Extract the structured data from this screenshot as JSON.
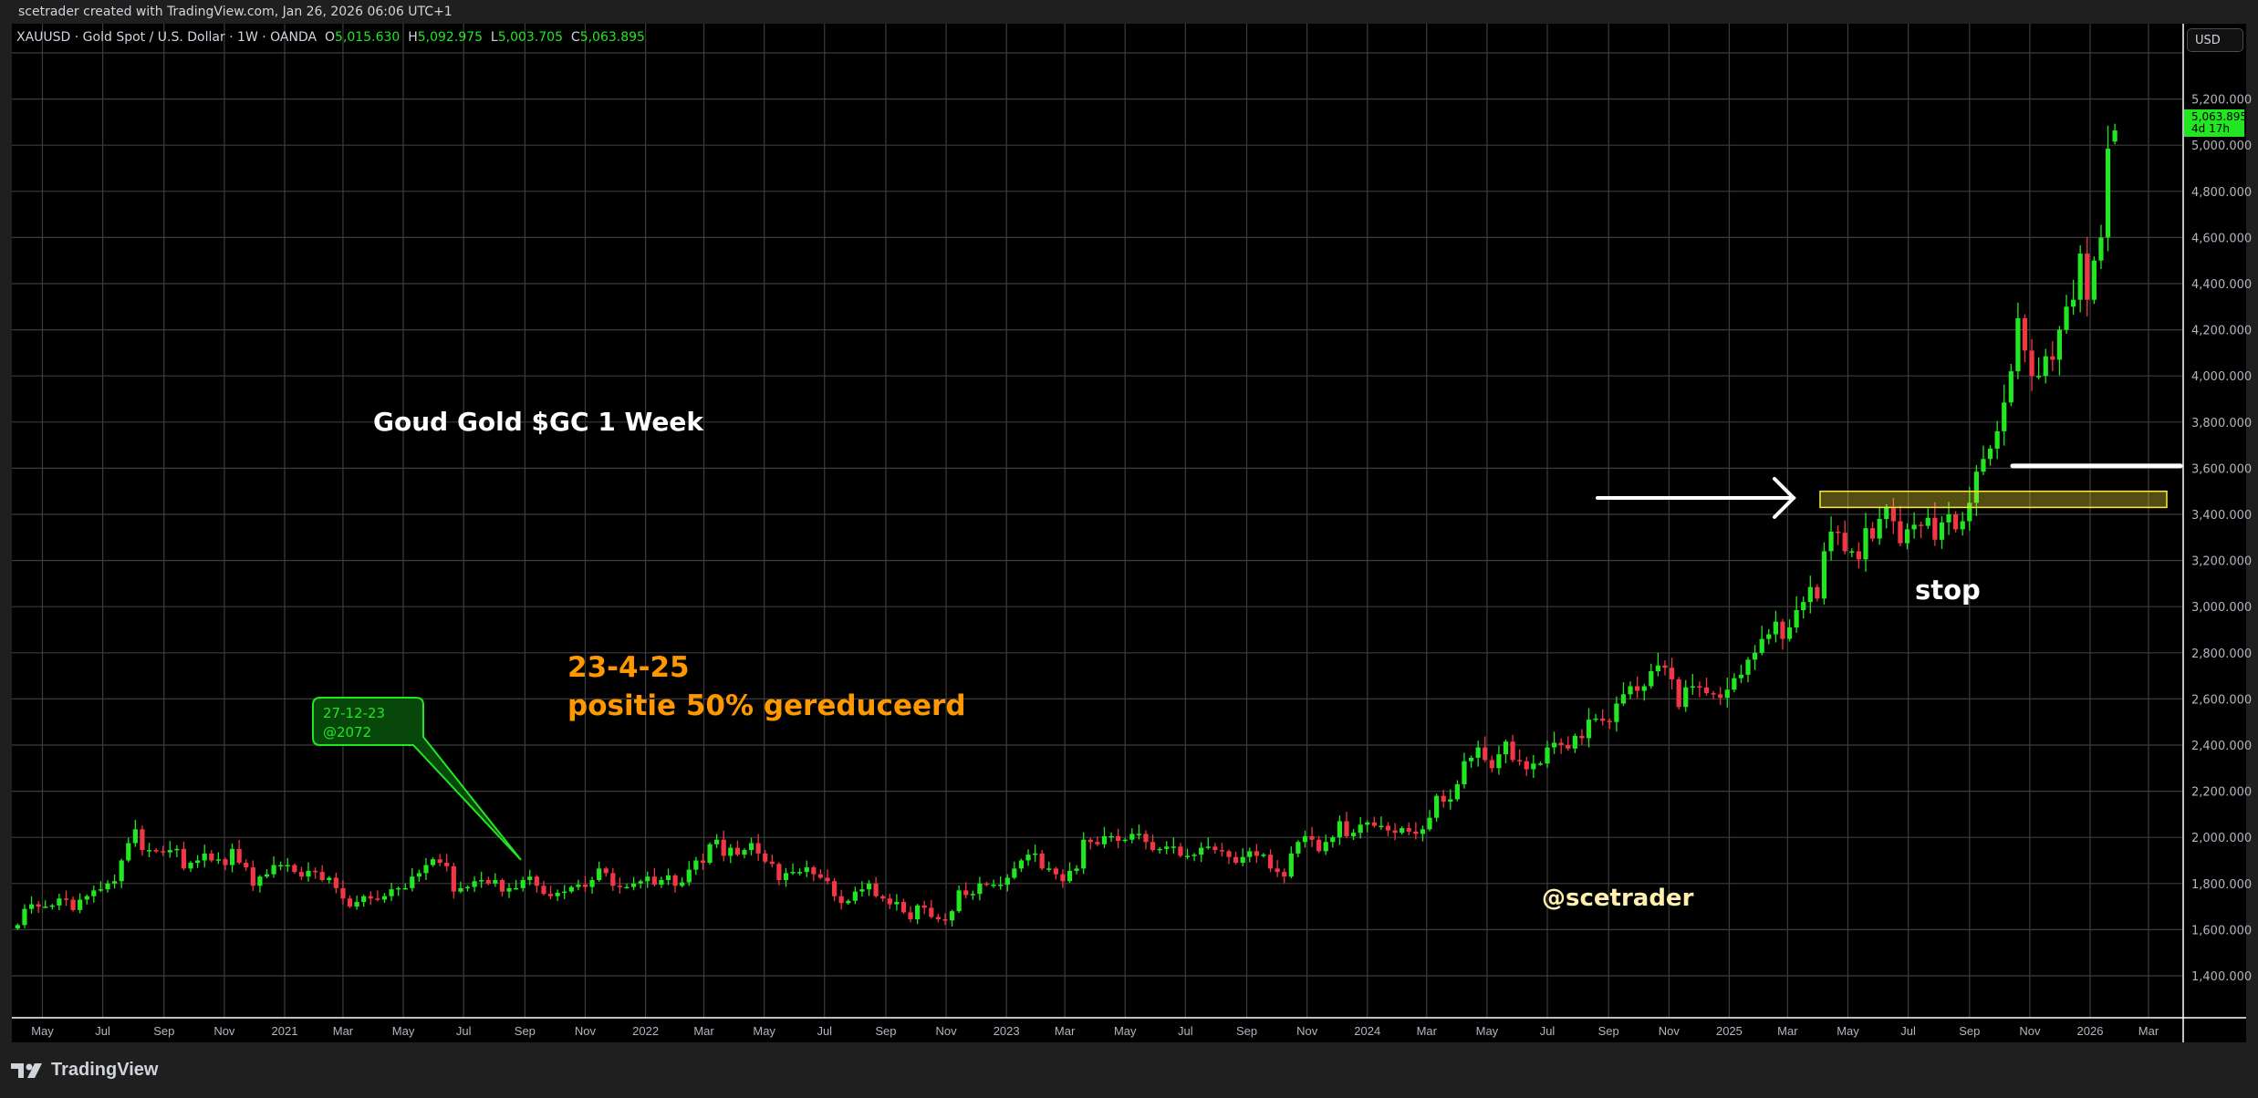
{
  "header": {
    "credit": "scetrader created with TradingView.com, Jan 26, 2026 06:06 UTC+1"
  },
  "legend": {
    "symbol": "XAUUSD · Gold Spot / U.S. Dollar · 1W · OANDA",
    "open_label": "O",
    "open": "5,015.630",
    "high_label": "H",
    "high": "5,092.975",
    "low_label": "L",
    "low": "5,003.705",
    "close_label": "C",
    "close": "5,063.895"
  },
  "price_axis": {
    "currency_button": "USD",
    "last_price": "5,063.895",
    "countdown": "4d 17h"
  },
  "logo": {
    "text": "TradingView",
    "icon": "tradingview-logo-icon"
  },
  "colors": {
    "up": "#22e622",
    "down": "#f23645",
    "background": "#000000",
    "grid": "#3c3c3c",
    "annotation_orange": "#ff9800",
    "zone_yellow": "#ffeb3b",
    "handle": "#fff0b0"
  },
  "annotations": {
    "title": "Goud Gold $GC 1 Week",
    "reduce_date": "23-4-25",
    "reduce_text": "positie 50% gereduceerd",
    "callout_line1": "27-12-23",
    "callout_line2": "@2072",
    "stop": "stop",
    "handle": "@scetrader",
    "zone_low": 3430,
    "zone_high": 3500,
    "stop_line_price": 3610
  },
  "chart_data": {
    "type": "candlestick",
    "interval": "1W",
    "last_bar_date": "2026-01-26",
    "ylim": [
      1220,
      5400
    ],
    "grid": true,
    "y_ticks": [
      1400,
      1600,
      1800,
      2000,
      2200,
      2400,
      2600,
      2800,
      3000,
      3200,
      3400,
      3600,
      3800,
      4000,
      4200,
      4400,
      4600,
      4800,
      5000,
      5200
    ],
    "x_ticks": [
      {
        "label": "May",
        "date": "2020-05-01"
      },
      {
        "label": "Jul",
        "date": "2020-07-01"
      },
      {
        "label": "Sep",
        "date": "2020-09-01"
      },
      {
        "label": "Nov",
        "date": "2020-11-01"
      },
      {
        "label": "2021",
        "date": "2021-01-01"
      },
      {
        "label": "Mar",
        "date": "2021-03-01"
      },
      {
        "label": "May",
        "date": "2021-05-01"
      },
      {
        "label": "Jul",
        "date": "2021-07-01"
      },
      {
        "label": "Sep",
        "date": "2021-09-01"
      },
      {
        "label": "Nov",
        "date": "2021-11-01"
      },
      {
        "label": "2022",
        "date": "2022-01-01"
      },
      {
        "label": "Mar",
        "date": "2022-03-01"
      },
      {
        "label": "May",
        "date": "2022-05-01"
      },
      {
        "label": "Jul",
        "date": "2022-07-01"
      },
      {
        "label": "Sep",
        "date": "2022-09-01"
      },
      {
        "label": "Nov",
        "date": "2022-11-01"
      },
      {
        "label": "2023",
        "date": "2023-01-01"
      },
      {
        "label": "Mar",
        "date": "2023-03-01"
      },
      {
        "label": "May",
        "date": "2023-05-01"
      },
      {
        "label": "Jul",
        "date": "2023-07-01"
      },
      {
        "label": "Sep",
        "date": "2023-09-01"
      },
      {
        "label": "Nov",
        "date": "2023-11-01"
      },
      {
        "label": "2024",
        "date": "2024-01-01"
      },
      {
        "label": "Mar",
        "date": "2024-03-01"
      },
      {
        "label": "May",
        "date": "2024-05-01"
      },
      {
        "label": "Jul",
        "date": "2024-07-01"
      },
      {
        "label": "Sep",
        "date": "2024-09-01"
      },
      {
        "label": "Nov",
        "date": "2024-11-01"
      },
      {
        "label": "2025",
        "date": "2025-01-01"
      },
      {
        "label": "Mar",
        "date": "2025-03-01"
      },
      {
        "label": "May",
        "date": "2025-05-01"
      },
      {
        "label": "Jul",
        "date": "2025-07-01"
      },
      {
        "label": "Sep",
        "date": "2025-09-01"
      },
      {
        "label": "Nov",
        "date": "2025-11-01"
      },
      {
        "label": "2026",
        "date": "2026-01-01"
      },
      {
        "label": "Mar",
        "date": "2026-03-01"
      }
    ],
    "first_open": 1605,
    "closes": [
      1620,
      1690,
      1710,
      1700,
      1700,
      1705,
      1735,
      1730,
      1685,
      1730,
      1745,
      1770,
      1775,
      1800,
      1810,
      1900,
      1975,
      2035,
      1945,
      1945,
      1940,
      1935,
      1945,
      1950,
      1865,
      1890,
      1900,
      1930,
      1900,
      1905,
      1880,
      1950,
      1890,
      1870,
      1790,
      1830,
      1840,
      1880,
      1880,
      1880,
      1850,
      1830,
      1855,
      1850,
      1815,
      1825,
      1780,
      1735,
      1700,
      1720,
      1745,
      1735,
      1730,
      1745,
      1775,
      1780,
      1780,
      1830,
      1845,
      1880,
      1905,
      1890,
      1875,
      1765,
      1780,
      1785,
      1810,
      1815,
      1800,
      1815,
      1765,
      1780,
      1780,
      1815,
      1830,
      1790,
      1755,
      1745,
      1760,
      1765,
      1785,
      1795,
      1785,
      1815,
      1865,
      1845,
      1790,
      1785,
      1785,
      1800,
      1810,
      1830,
      1795,
      1815,
      1835,
      1790,
      1805,
      1860,
      1900,
      1890,
      1970,
      1990,
      1920,
      1955,
      1925,
      1945,
      1975,
      1930,
      1895,
      1885,
      1815,
      1845,
      1850,
      1850,
      1870,
      1840,
      1825,
      1810,
      1745,
      1715,
      1725,
      1765,
      1775,
      1800,
      1745,
      1735,
      1710,
      1720,
      1675,
      1645,
      1705,
      1695,
      1655,
      1645,
      1640,
      1680,
      1770,
      1750,
      1755,
      1800,
      1795,
      1795,
      1795,
      1825,
      1865,
      1900,
      1925,
      1930,
      1865,
      1865,
      1840,
      1810,
      1855,
      1865,
      1990,
      1980,
      1970,
      2005,
      2005,
      1985,
      1990,
      2015,
      2015,
      1980,
      1945,
      1950,
      1960,
      1960,
      1920,
      1920,
      1925,
      1955,
      1960,
      1945,
      1940,
      1915,
      1890,
      1915,
      1940,
      1920,
      1925,
      1865,
      1850,
      1830,
      1930,
      1980,
      2005,
      1990,
      1940,
      1980,
      2000,
      2070,
      2005,
      2020,
      2055,
      2065,
      2050,
      2050,
      2030,
      2020,
      2040,
      2025,
      2015,
      2035,
      2085,
      2180,
      2155,
      2165,
      2230,
      2330,
      2345,
      2390,
      2335,
      2300,
      2360,
      2415,
      2335,
      2330,
      2295,
      2320,
      2320,
      2390,
      2410,
      2400,
      2385,
      2440,
      2430,
      2510,
      2515,
      2505,
      2500,
      2580,
      2620,
      2655,
      2635,
      2655,
      2720,
      2745,
      2735,
      2685,
      2565,
      2650,
      2655,
      2650,
      2625,
      2620,
      2605,
      2640,
      2690,
      2705,
      2770,
      2800,
      2860,
      2880,
      2935,
      2860,
      2910,
      2985,
      3020,
      3085,
      3035,
      3240,
      3325,
      3320,
      3240,
      3240,
      3205,
      3340,
      3295,
      3380,
      3430,
      3370,
      3275,
      3335,
      3355,
      3350,
      3385,
      3290,
      3365,
      3400,
      3335,
      3370,
      3450,
      3585,
      3640,
      3685,
      3760,
      3885,
      4020,
      4250,
      4110,
      4000,
      4000,
      4085,
      4070,
      4200,
      4300,
      4330,
      4530,
      4330,
      4500,
      4600,
      4985,
      5063.895
    ],
    "last_bar": {
      "open": 5015.63,
      "high": 5092.975,
      "low": 5003.705,
      "close": 5063.895
    }
  }
}
